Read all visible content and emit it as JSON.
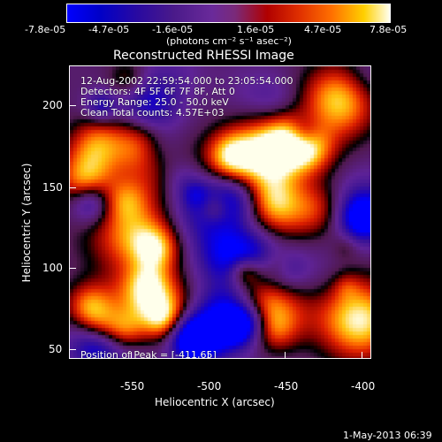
{
  "colorbar": {
    "tick_labels": [
      "-7.8e-05",
      "-4.7e-05",
      "-1.6e-05",
      "1.6e-05",
      "4.7e-05",
      "7.8e-05"
    ],
    "units": "(photons cm⁻² s⁻¹ asec⁻²)"
  },
  "plot": {
    "title": "Reconstructed RHESSI Image",
    "xlabel": "Heliocentric X (arcsec)",
    "ylabel": "Heliocentric Y (arcsec)",
    "x_ticks": [
      "-550",
      "-500",
      "-450",
      "-400"
    ],
    "y_ticks": [
      "200",
      "150",
      "100",
      "50"
    ]
  },
  "overlay": {
    "time_range": "12-Aug-2002 22:59:54.000 to 23:05:54.000",
    "detectors": "Detectors: 4F 5F 6F 7F 8F, Att 0",
    "energy": "Energy Range: 25.0 - 50.0 keV",
    "clean": "Clean    Total counts: 4.57E+03",
    "peak": "Position of Peak = [-411,65]"
  },
  "footer": {
    "timestamp": "1-May-2013 06:39"
  }
}
